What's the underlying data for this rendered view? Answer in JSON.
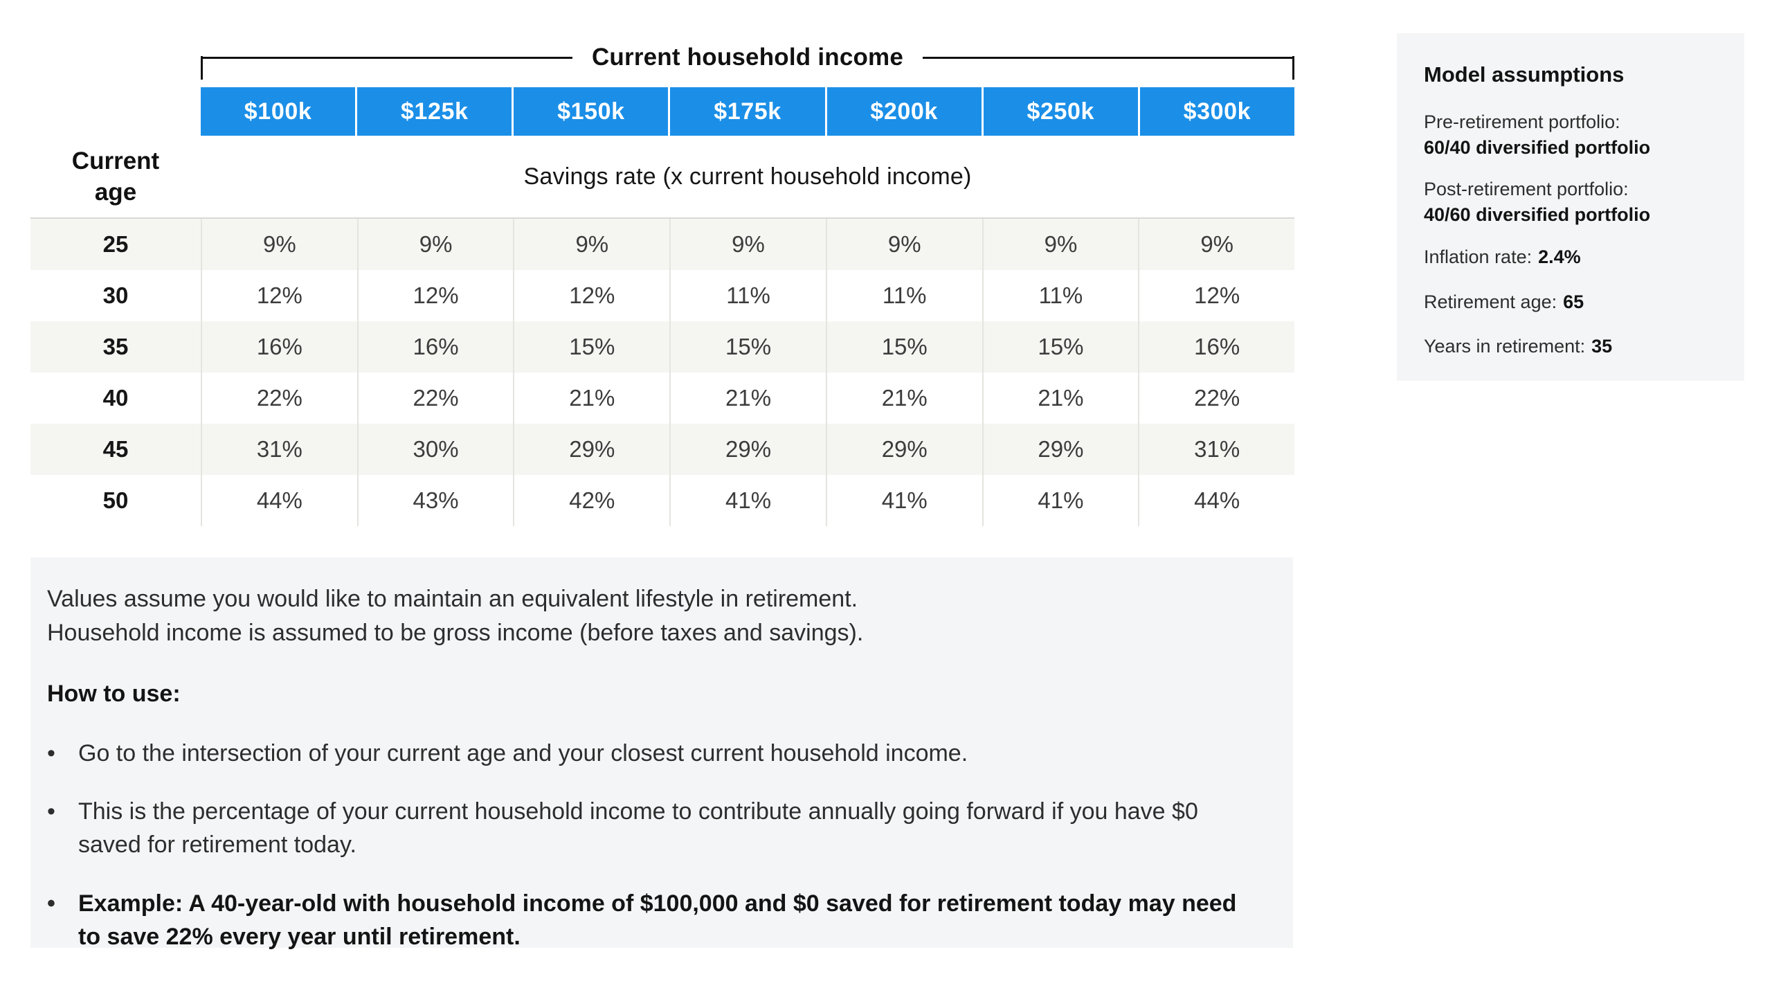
{
  "chart_data": {
    "type": "table",
    "title": "Current household income",
    "value_header": "Savings rate (x current household income)",
    "row_axis_label": "Current age",
    "columns": [
      "$100k",
      "$125k",
      "$150k",
      "$175k",
      "$200k",
      "$250k",
      "$300k"
    ],
    "rows": [
      {
        "age": "25",
        "values": [
          "9%",
          "9%",
          "9%",
          "9%",
          "9%",
          "9%",
          "9%"
        ]
      },
      {
        "age": "30",
        "values": [
          "12%",
          "12%",
          "12%",
          "11%",
          "11%",
          "11%",
          "12%"
        ]
      },
      {
        "age": "35",
        "values": [
          "16%",
          "16%",
          "15%",
          "15%",
          "15%",
          "15%",
          "16%"
        ]
      },
      {
        "age": "40",
        "values": [
          "22%",
          "22%",
          "21%",
          "21%",
          "21%",
          "21%",
          "22%"
        ]
      },
      {
        "age": "45",
        "values": [
          "31%",
          "30%",
          "29%",
          "29%",
          "29%",
          "29%",
          "31%"
        ]
      },
      {
        "age": "50",
        "values": [
          "44%",
          "43%",
          "42%",
          "41%",
          "41%",
          "41%",
          "44%"
        ]
      }
    ]
  },
  "assumptions": {
    "title": "Model assumptions",
    "items": [
      {
        "label": "Pre-retirement portfolio:",
        "value": "60/40 diversified portfolio"
      },
      {
        "label": "Post-retirement portfolio:",
        "value": "40/60 diversified portfolio"
      },
      {
        "label": "Inflation rate:",
        "value": "2.4%"
      },
      {
        "label": "Retirement age:",
        "value": "65"
      },
      {
        "label": "Years in retirement:",
        "value": "35"
      }
    ]
  },
  "notes": {
    "intro_lines": [
      "Values assume you would like to maintain an equivalent lifestyle in retirement.",
      "Household income is assumed to be gross income (before taxes and savings)."
    ],
    "how_to_use_label": "How to use:",
    "bullet_glyph": "•",
    "bullets": [
      {
        "text": "Go to the intersection of your current age and your closest current household income.",
        "bold": false
      },
      {
        "text": "This is the percentage of your current household income to contribute annually going forward if you have $0 saved for retirement today.",
        "bold": false
      },
      {
        "text": "Example: A 40-year-old with household income of $100,000 and $0 saved for retirement today may need to save 22% every year until retirement.",
        "bold": true
      }
    ]
  },
  "colors": {
    "accent_blue": "#1b8fe8",
    "stripe_bg": "#f5f5f2",
    "panel_bg": "#f4f5f6",
    "bracket_line": "#111111"
  }
}
